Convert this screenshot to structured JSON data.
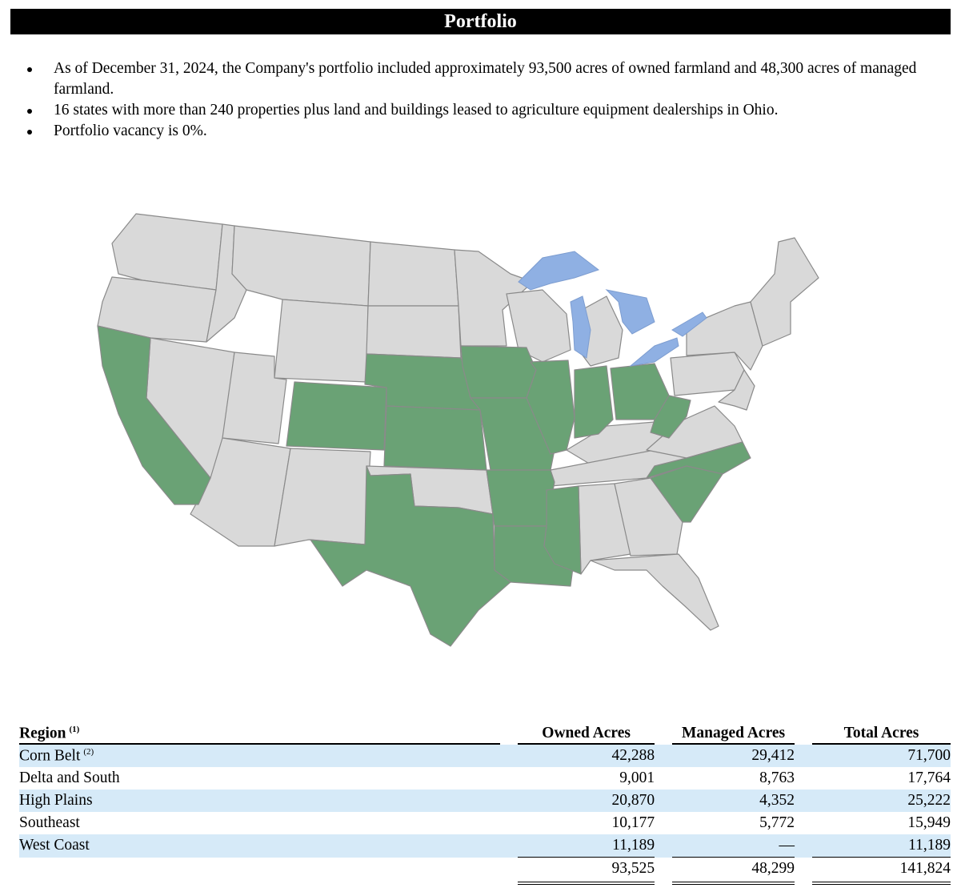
{
  "header": {
    "title": "Portfolio"
  },
  "bullets": [
    "As of December 31, 2024, the Company's portfolio included approximately 93,500 acres of owned farmland and 48,300 acres of managed farmland.",
    "16 states with more than 240 properties plus land and buildings leased to agriculture equipment dealerships in Ohio.",
    "Portfolio vacancy is 0%."
  ],
  "map": {
    "highlight_color": "#6aa275",
    "base_color": "#d9d9d9",
    "lake_color": "#8fb0e3",
    "highlighted_states": [
      "CA",
      "CO",
      "NE",
      "KS",
      "TX",
      "IA",
      "MO",
      "AR",
      "LA",
      "MS",
      "IL",
      "IN",
      "OH",
      "WV",
      "NC",
      "SC"
    ]
  },
  "table": {
    "headers": {
      "region": "Region",
      "region_note": "(1)",
      "owned": "Owned Acres",
      "managed": "Managed Acres",
      "total": "Total Acres"
    },
    "rows": [
      {
        "region": "Corn Belt",
        "note": "(2)",
        "owned": "42,288",
        "managed": "29,412",
        "total": "71,700"
      },
      {
        "region": "Delta and South",
        "note": "",
        "owned": "9,001",
        "managed": "8,763",
        "total": "17,764"
      },
      {
        "region": "High Plains",
        "note": "",
        "owned": "20,870",
        "managed": "4,352",
        "total": "25,222"
      },
      {
        "region": "Southeast",
        "note": "",
        "owned": "10,177",
        "managed": "5,772",
        "total": "15,949"
      },
      {
        "region": "West Coast",
        "note": "",
        "owned": "11,189",
        "managed": "—",
        "total": "11,189"
      }
    ],
    "totals": {
      "owned": "93,525",
      "managed": "48,299",
      "total": "141,824"
    }
  }
}
